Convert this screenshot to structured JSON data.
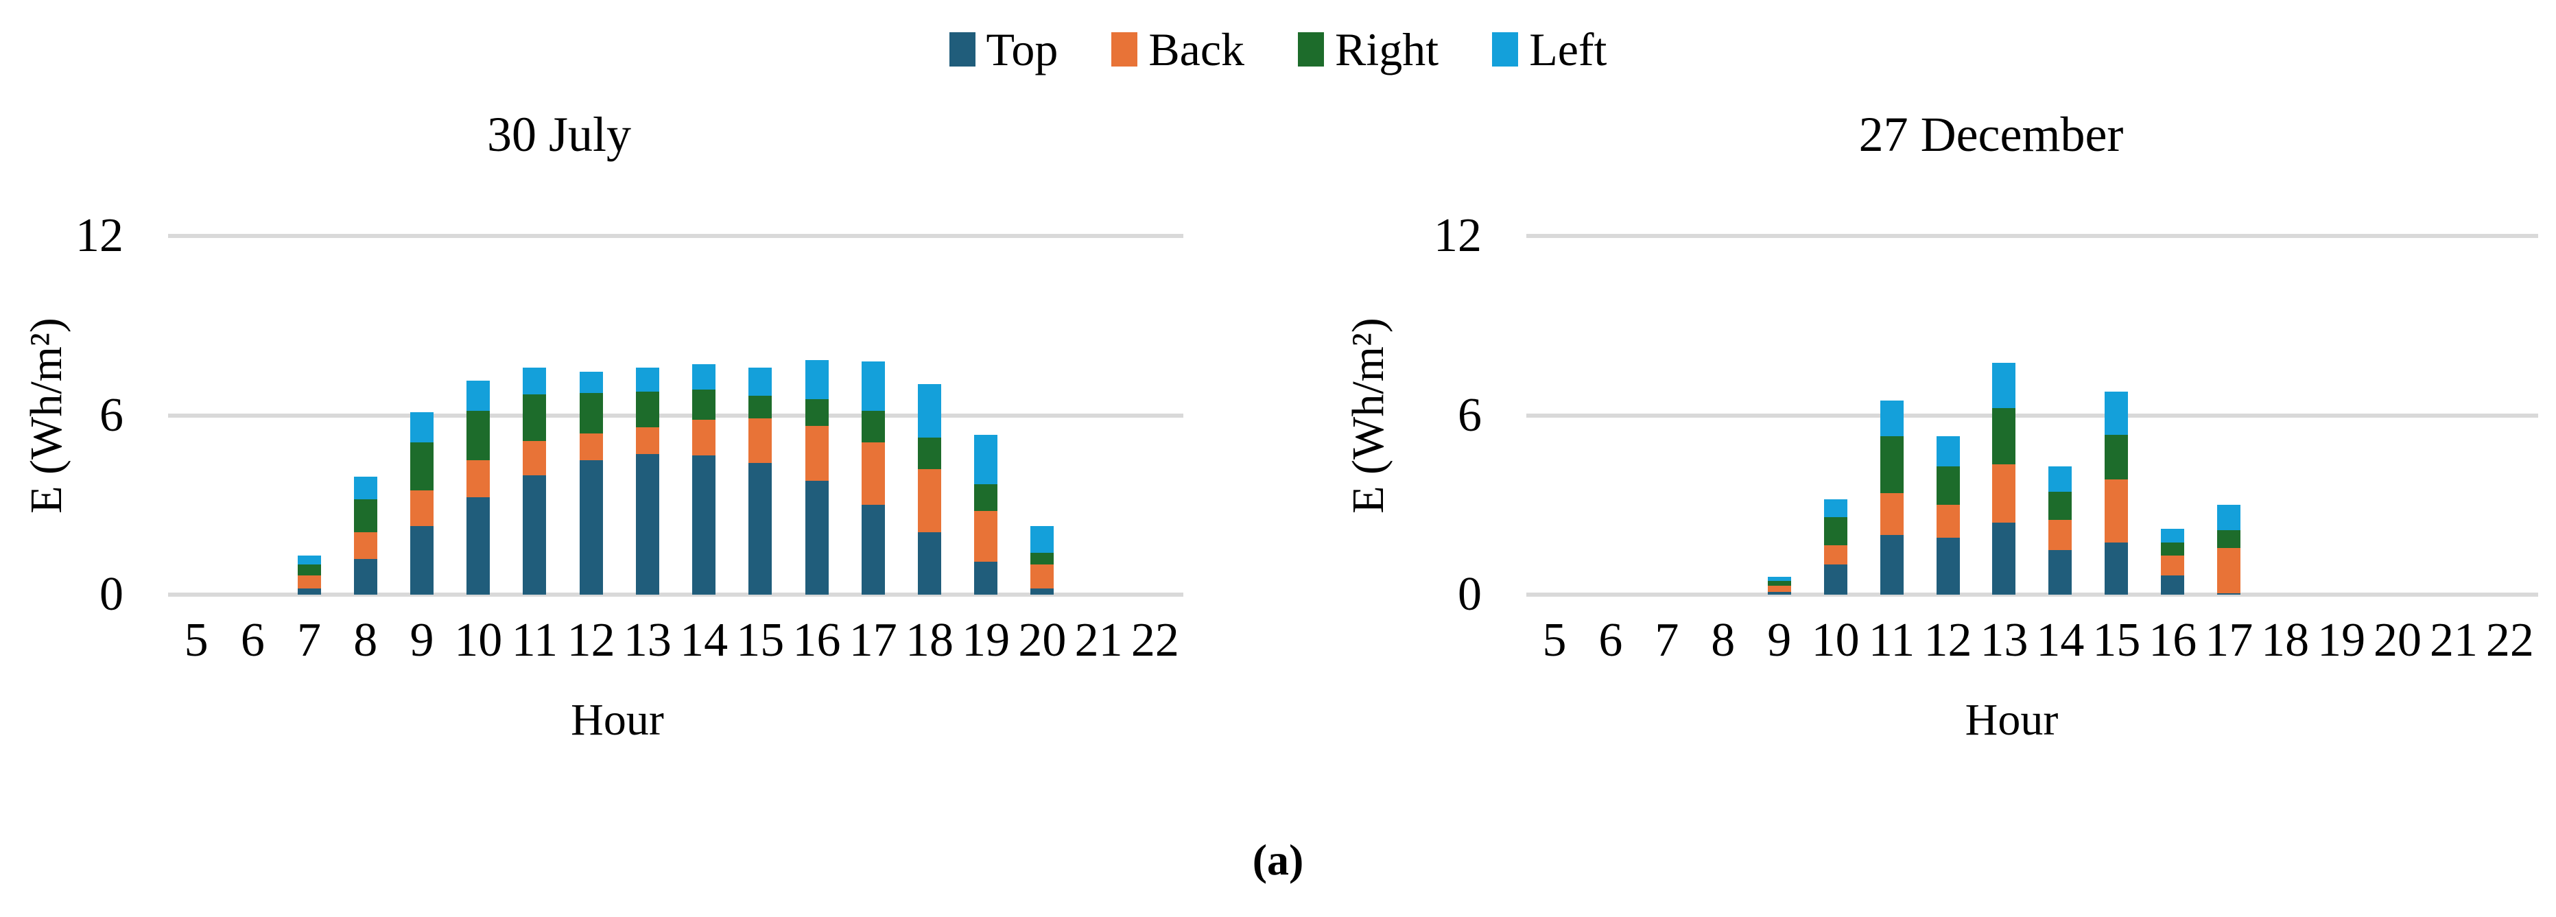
{
  "figure": {
    "caption": "(a)"
  },
  "legend": {
    "items": [
      {
        "label": "Top",
        "color": "#205D7B"
      },
      {
        "label": "Back",
        "color": "#E87337"
      },
      {
        "label": "Right",
        "color": "#1D6C2B"
      },
      {
        "label": "Left",
        "color": "#14A0DA"
      }
    ]
  },
  "colors": {
    "gridline": "#D9D9D9",
    "text": "#000000",
    "background": "#FFFFFF"
  },
  "chart_data": [
    {
      "type": "bar",
      "stacked": true,
      "title": "30 July",
      "xlabel": "Hour",
      "ylabel": "E (Wh/m²)",
      "ylim": [
        0,
        12
      ],
      "yticks": [
        0,
        6,
        12
      ],
      "grid": "horizontal",
      "legend_position": "top-shared",
      "categories": [
        "5",
        "6",
        "7",
        "8",
        "9",
        "10",
        "11",
        "12",
        "13",
        "14",
        "15",
        "16",
        "17",
        "18",
        "19",
        "20",
        "21",
        "22"
      ],
      "series": [
        {
          "name": "Top",
          "color": "#205D7B",
          "values": [
            0,
            0,
            0.2,
            1.2,
            2.3,
            3.25,
            4.0,
            4.5,
            4.7,
            4.65,
            4.4,
            3.8,
            3.0,
            2.1,
            1.1,
            0.2,
            0,
            0
          ]
        },
        {
          "name": "Back",
          "color": "#E87337",
          "values": [
            0,
            0,
            0.45,
            0.9,
            1.2,
            1.25,
            1.15,
            0.9,
            0.9,
            1.2,
            1.5,
            1.85,
            2.1,
            2.1,
            1.7,
            0.8,
            0,
            0
          ]
        },
        {
          "name": "Right",
          "color": "#1D6C2B",
          "values": [
            0,
            0,
            0.35,
            1.1,
            1.6,
            1.65,
            1.55,
            1.35,
            1.2,
            1.0,
            0.75,
            0.9,
            1.05,
            1.05,
            0.9,
            0.4,
            0,
            0
          ]
        },
        {
          "name": "Left",
          "color": "#14A0DA",
          "values": [
            0,
            0,
            0.3,
            0.75,
            1.0,
            1.0,
            0.9,
            0.7,
            0.8,
            0.85,
            0.95,
            1.3,
            1.65,
            1.8,
            1.65,
            0.9,
            0,
            0
          ]
        }
      ]
    },
    {
      "type": "bar",
      "stacked": true,
      "title": "27 December",
      "xlabel": "Hour",
      "ylabel": "E (Wh/m²)",
      "ylim": [
        0,
        12
      ],
      "yticks": [
        0,
        6,
        12
      ],
      "grid": "horizontal",
      "legend_position": "top-shared",
      "categories": [
        "5",
        "6",
        "7",
        "8",
        "9",
        "10",
        "11",
        "12",
        "13",
        "14",
        "15",
        "16",
        "17",
        "18",
        "19",
        "20",
        "21",
        "22"
      ],
      "series": [
        {
          "name": "Top",
          "color": "#205D7B",
          "values": [
            0,
            0,
            0,
            0,
            0.1,
            1.0,
            2.0,
            1.9,
            2.4,
            1.5,
            1.75,
            0.65,
            0.05,
            0,
            0,
            0,
            0,
            0
          ]
        },
        {
          "name": "Back",
          "color": "#E87337",
          "values": [
            0,
            0,
            0,
            0,
            0.2,
            0.65,
            1.4,
            1.1,
            1.95,
            1.0,
            2.1,
            0.65,
            1.5,
            0,
            0,
            0,
            0,
            0
          ]
        },
        {
          "name": "Right",
          "color": "#1D6C2B",
          "values": [
            0,
            0,
            0,
            0,
            0.15,
            0.95,
            1.9,
            1.3,
            1.9,
            0.95,
            1.5,
            0.45,
            0.6,
            0,
            0,
            0,
            0,
            0
          ]
        },
        {
          "name": "Left",
          "color": "#14A0DA",
          "values": [
            0,
            0,
            0,
            0,
            0.15,
            0.6,
            1.2,
            1.0,
            1.5,
            0.85,
            1.45,
            0.45,
            0.85,
            0,
            0,
            0,
            0,
            0
          ]
        }
      ]
    }
  ]
}
